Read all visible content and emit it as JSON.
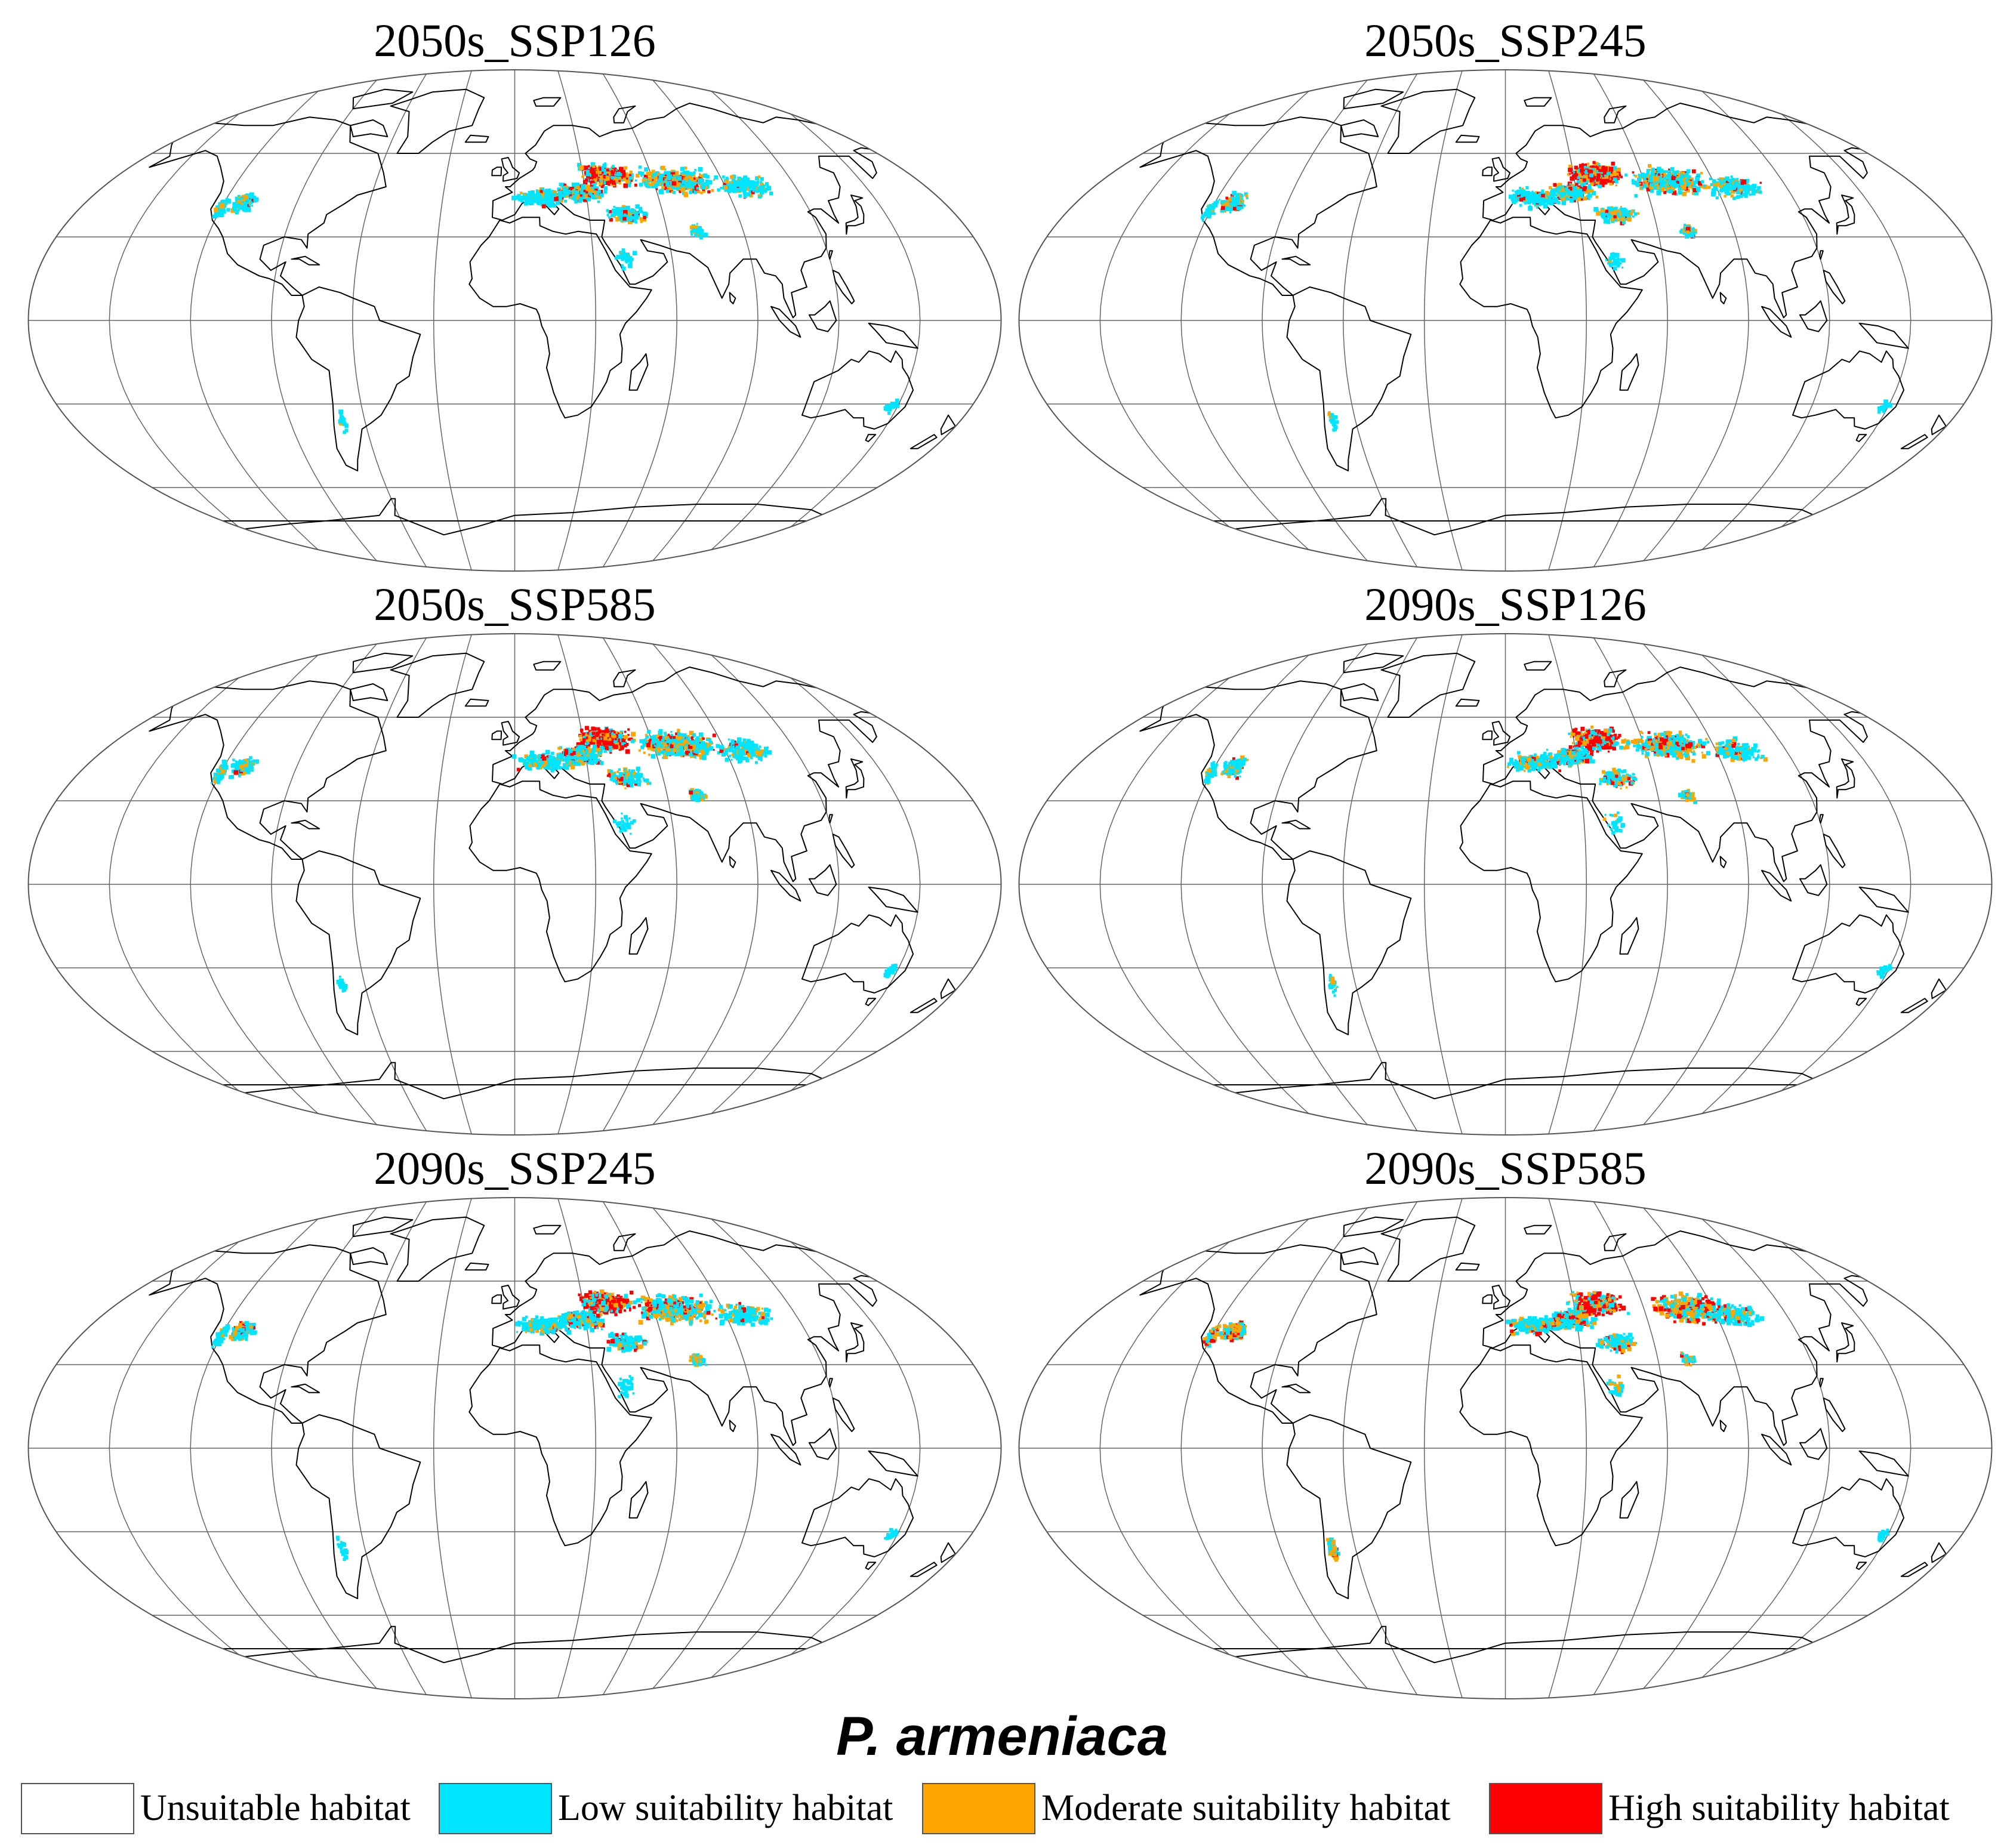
{
  "panels": [
    {
      "title": "2050s_SSP126",
      "variant": 0
    },
    {
      "title": "2050s_SSP245",
      "variant": 1
    },
    {
      "title": "2050s_SSP585",
      "variant": 2
    },
    {
      "title": "2090s_SSP126",
      "variant": 3
    },
    {
      "title": "2090s_SSP245",
      "variant": 4
    },
    {
      "title": "2090s_SSP585",
      "variant": 5
    }
  ],
  "species": "P. armeniaca",
  "legend": [
    {
      "label": "Unsuitable habitat",
      "color": "#ffffff"
    },
    {
      "label": "Low suitability habitat",
      "color": "#00e5ff"
    },
    {
      "label": "Moderate suitability habitat",
      "color": "#ffa500"
    },
    {
      "label": "High suitability habitat",
      "color": "#ff0000"
    }
  ]
}
